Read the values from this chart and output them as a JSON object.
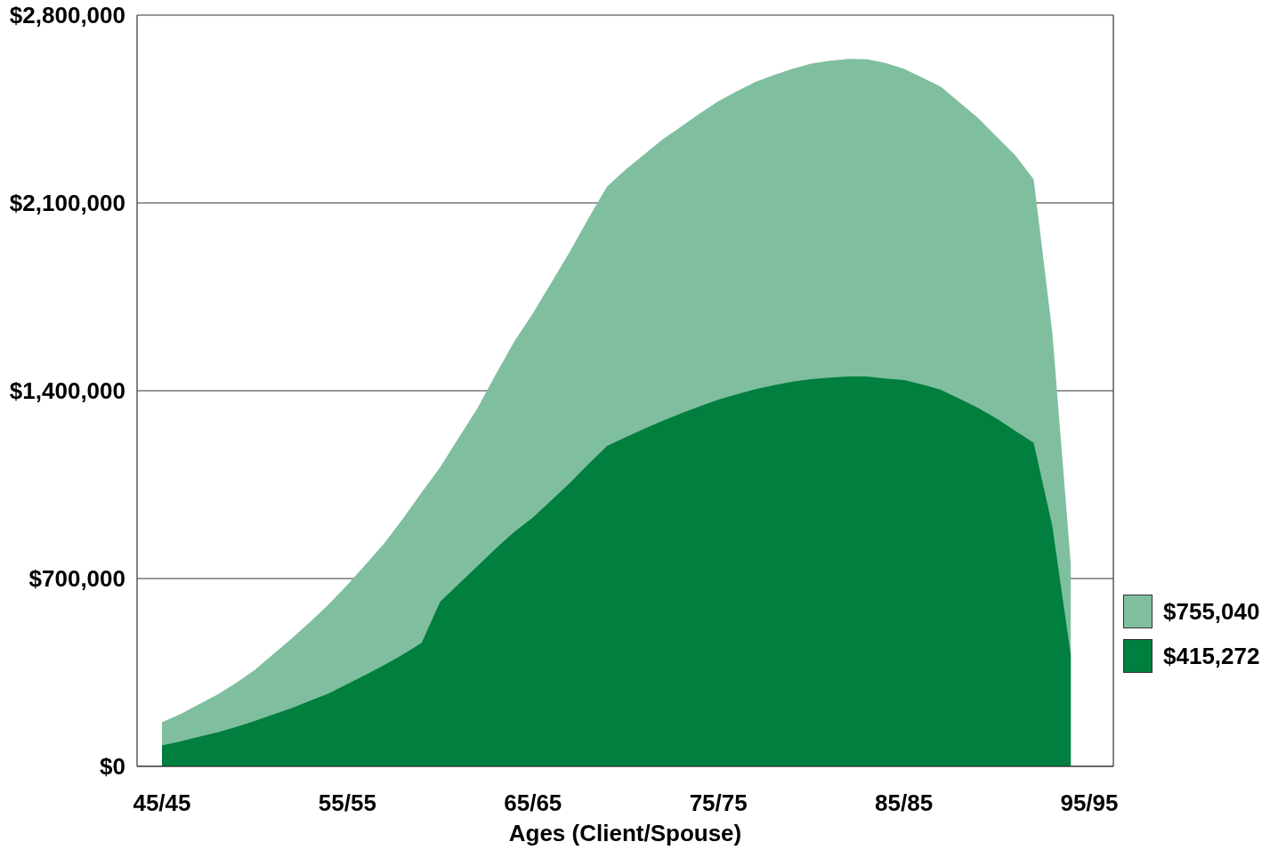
{
  "chart_data": {
    "type": "area",
    "xlabel": "Ages (Client/Spouse)",
    "categories": [
      "45/45",
      null,
      null,
      null,
      null,
      null,
      null,
      null,
      null,
      null,
      "55/55",
      null,
      null,
      null,
      null,
      null,
      null,
      null,
      null,
      null,
      "65/65",
      null,
      null,
      null,
      null,
      null,
      null,
      null,
      null,
      null,
      "75/75",
      null,
      null,
      null,
      null,
      null,
      null,
      null,
      null,
      null,
      "85/85",
      null,
      null,
      null,
      null,
      null,
      null,
      null,
      null,
      null,
      "95/95"
    ],
    "series": [
      {
        "name": "$755,040",
        "color": "#7fbfa0",
        "values": [
          164000,
          195000,
          231000,
          268000,
          311000,
          359000,
          418000,
          477000,
          539000,
          605000,
          677000,
          754000,
          833000,
          924000,
          1021000,
          1115000,
          1225000,
          1334000,
          1461000,
          1584000,
          1689000,
          1804000,
          1919000,
          2044000,
          2161000,
          2224000,
          2281000,
          2337000,
          2385000,
          2433000,
          2479000,
          2516000,
          2551000,
          2577000,
          2600000,
          2619000,
          2630000,
          2637000,
          2636000,
          2622000,
          2600000,
          2567000,
          2533000,
          2475000,
          2417000,
          2347000,
          2278000,
          2188000,
          1621000,
          755000,
          null
        ]
      },
      {
        "name": "$415,272",
        "color": "#007f3e",
        "values": [
          78000,
          93000,
          110000,
          127000,
          147000,
          169000,
          193000,
          217000,
          245000,
          272000,
          307000,
          342000,
          378000,
          417000,
          460000,
          614000,
          680000,
          746000,
          812000,
          874000,
          927000,
          992000,
          1057000,
          1127000,
          1194000,
          1227000,
          1258000,
          1288000,
          1316000,
          1342000,
          1367000,
          1387000,
          1406000,
          1421000,
          1434000,
          1443000,
          1449000,
          1453000,
          1453000,
          1446000,
          1440000,
          1423000,
          1403000,
          1370000,
          1336000,
          1296000,
          1251000,
          1206000,
          897000,
          415000,
          null
        ]
      }
    ],
    "ylim": [
      0,
      2800000
    ],
    "yticks": [
      {
        "value": 0,
        "label": "$0"
      },
      {
        "value": 700000,
        "label": "$700,000"
      },
      {
        "value": 1400000,
        "label": "$1,400,000"
      },
      {
        "value": 2100000,
        "label": "$2,100,000"
      },
      {
        "value": 2800000,
        "label": "$2,800,000"
      }
    ],
    "grid": "y",
    "legend": "right"
  }
}
